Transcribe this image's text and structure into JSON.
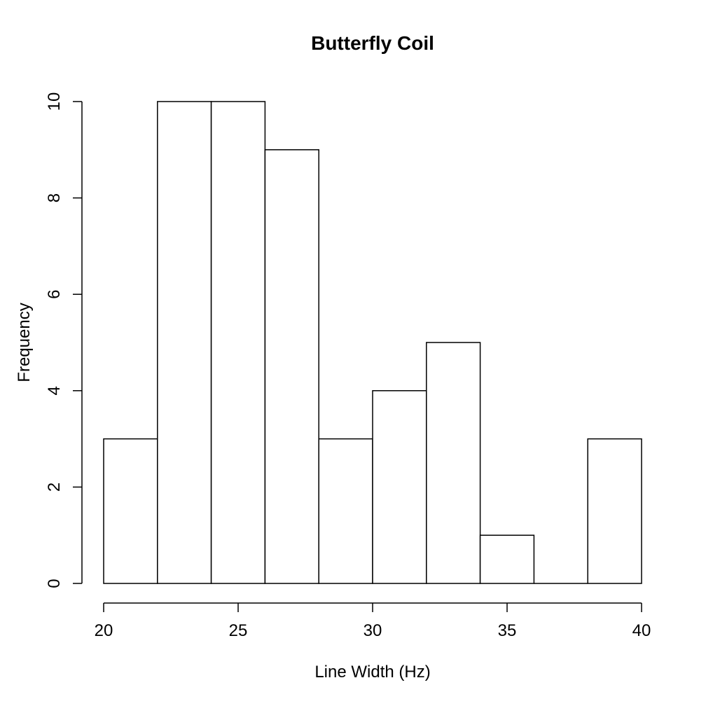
{
  "chart_data": {
    "type": "bar",
    "subtype": "histogram",
    "title": "Butterfly Coil",
    "xlabel": "Line Width (Hz)",
    "ylabel": "Frequency",
    "bin_edges": [
      20,
      22,
      24,
      26,
      28,
      30,
      32,
      34,
      36,
      38,
      40
    ],
    "counts": [
      3,
      10,
      10,
      9,
      3,
      4,
      5,
      1,
      0,
      3
    ],
    "x_ticks": [
      20,
      25,
      30,
      35,
      40
    ],
    "y_ticks": [
      0,
      2,
      4,
      6,
      8,
      10
    ],
    "xlim": [
      20,
      40
    ],
    "ylim": [
      0,
      10
    ],
    "grid": false,
    "legend": false,
    "bar_fill": "#ffffff",
    "bar_stroke": "#000000",
    "axis_color": "#000000",
    "text_color": "#000000",
    "background": "#ffffff"
  }
}
